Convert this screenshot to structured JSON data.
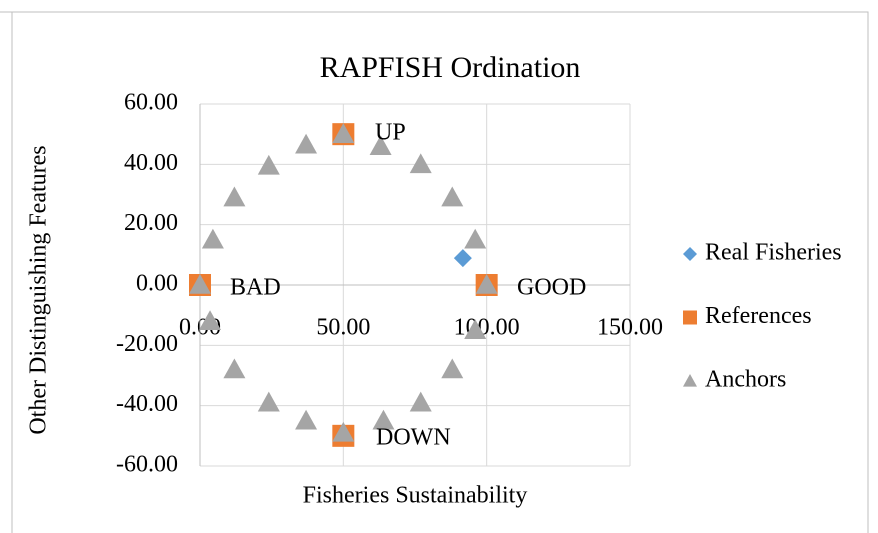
{
  "chart_data": {
    "type": "scatter",
    "title": "RAPFISH Ordination",
    "xlabel": "Fisheries Sustainability",
    "ylabel": "Other Distinguishing Features",
    "xlim": [
      0,
      150
    ],
    "ylim": [
      -60,
      60
    ],
    "xticks": [
      {
        "value": 0,
        "label": "0.00"
      },
      {
        "value": 50,
        "label": "50.00"
      },
      {
        "value": 100,
        "label": "100.00"
      },
      {
        "value": 150,
        "label": "150.00"
      }
    ],
    "yticks": [
      {
        "value": -60,
        "label": "-60.00"
      },
      {
        "value": -40,
        "label": "-40.00"
      },
      {
        "value": -20,
        "label": "-20.00"
      },
      {
        "value": 0,
        "label": "0.00"
      },
      {
        "value": 20,
        "label": "20.00"
      },
      {
        "value": 40,
        "label": "40.00"
      },
      {
        "value": 60,
        "label": "60.00"
      }
    ],
    "grid": true,
    "legend": "right",
    "series": [
      {
        "name": "Real Fisheries",
        "color": "#5b9bd5",
        "marker": "diamond",
        "x": [
          91.7
        ],
        "values": [
          8.9
        ]
      },
      {
        "name": "References",
        "color": "#ed7d31",
        "marker": "square",
        "x": [
          100,
          0,
          50,
          50
        ],
        "values": [
          0,
          0,
          50,
          -50
        ]
      },
      {
        "name": "Anchors",
        "color": "#a5a5a5",
        "marker": "triangle",
        "x": [
          0,
          4.5,
          12,
          24,
          37,
          50,
          63,
          77,
          88,
          96,
          100,
          96,
          88,
          77,
          64,
          50,
          37,
          24,
          12,
          3.5
        ],
        "values": [
          0,
          15,
          29,
          39.5,
          46.5,
          50,
          46,
          40,
          29,
          15,
          0,
          -15,
          -28,
          -39,
          -45,
          -49,
          -45,
          -39,
          -28,
          -12
        ]
      }
    ],
    "annotations": [
      "GOOD",
      "BAD",
      "UP",
      "DOWN"
    ]
  }
}
